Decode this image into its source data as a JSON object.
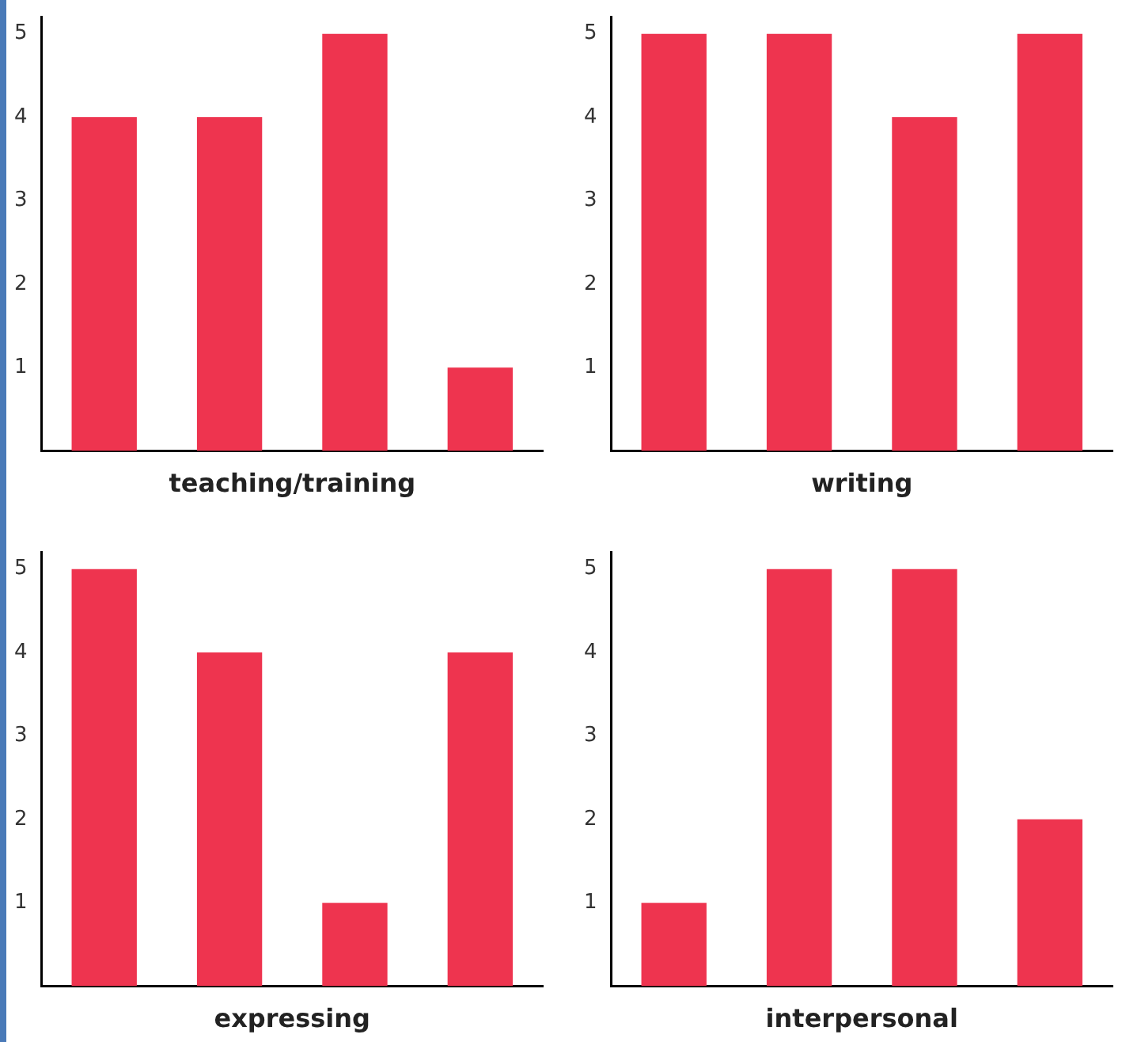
{
  "chart_data": [
    {
      "type": "bar",
      "xlabel": "teaching/training",
      "categories": [
        null,
        null,
        null,
        null
      ],
      "values": [
        4,
        4,
        5,
        1
      ],
      "color": "#ee344f",
      "ylim": [
        0,
        5.2
      ],
      "yticks": [
        1,
        2,
        3,
        4,
        5
      ],
      "grid": false,
      "legend": false,
      "tick_labels": "y"
    },
    {
      "type": "bar",
      "xlabel": "writing",
      "categories": [
        null,
        null,
        null,
        null
      ],
      "values": [
        5,
        5,
        4,
        5
      ],
      "color": "#ee344f",
      "ylim": [
        0,
        5.2
      ],
      "yticks": [
        1,
        2,
        3,
        4,
        5
      ],
      "grid": false,
      "legend": false,
      "tick_labels": "y"
    },
    {
      "type": "bar",
      "xlabel": "expressing",
      "categories": [
        null,
        null,
        null,
        null
      ],
      "values": [
        5,
        4,
        1,
        4
      ],
      "color": "#ee344f",
      "ylim": [
        0,
        5.2
      ],
      "yticks": [
        1,
        2,
        3,
        4,
        5
      ],
      "grid": false,
      "legend": false,
      "tick_labels": "y"
    },
    {
      "type": "bar",
      "xlabel": "interpersonal",
      "categories": [
        null,
        null,
        null,
        null
      ],
      "values": [
        1,
        5,
        5,
        2
      ],
      "color": "#ee344f",
      "ylim": [
        0,
        5.2
      ],
      "yticks": [
        1,
        2,
        3,
        4,
        5
      ],
      "grid": false,
      "legend": false,
      "tick_labels": "y"
    }
  ]
}
